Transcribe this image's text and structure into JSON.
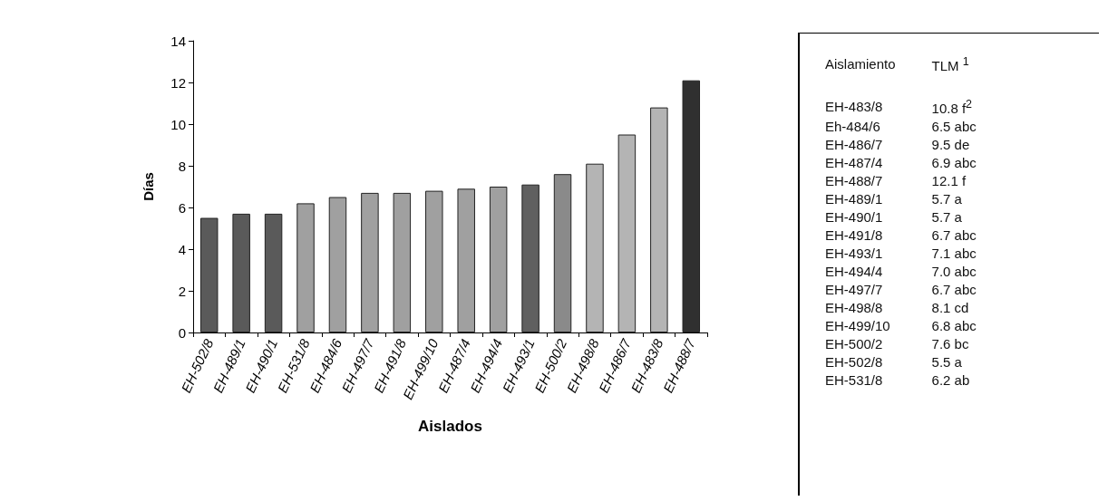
{
  "chart_data": [
    {
      "type": "bar",
      "xlabel": "Aislados",
      "ylabel": "Días",
      "categories": [
        "EH-502/8",
        "EH-489/1",
        "EH-490/1",
        "EH-531/8",
        "EH-484/6",
        "EH-497/7",
        "EH-491/8",
        "EH-499/10",
        "EH-487/4",
        "EH-494/4",
        "EH-493/1",
        "EH-500/2",
        "EH-498/8",
        "EH-486/7",
        "EH-483/8",
        "EH-488/7"
      ],
      "values": [
        5.5,
        5.7,
        5.7,
        6.2,
        6.5,
        6.7,
        6.7,
        6.8,
        6.9,
        7.0,
        7.1,
        7.6,
        8.1,
        9.5,
        10.8,
        12.1
      ],
      "colors": [
        "#5a5a5a",
        "#5a5a5a",
        "#5a5a5a",
        "#a0a0a0",
        "#a0a0a0",
        "#a0a0a0",
        "#a0a0a0",
        "#a0a0a0",
        "#a0a0a0",
        "#a0a0a0",
        "#606060",
        "#8a8a8a",
        "#b4b4b4",
        "#b4b4b4",
        "#b4b4b4",
        "#303030"
      ],
      "ylim": [
        0,
        14
      ],
      "yticks": [
        0,
        2,
        4,
        6,
        8,
        10,
        12,
        14
      ],
      "grid": false
    },
    {
      "type": "other",
      "annotations": [
        "Aislamiento",
        "TLM $^{1}$",
        "EH-483/8",
        "10.8 f$^{2}$",
        "Eh-484/6",
        "6.5 abc",
        "EH-486/7",
        "9.5 de",
        "EH-487/4",
        "6.9 abc",
        "EH-488/7",
        "12.1 f",
        "EH-489/1",
        "5.7 a",
        "EH-490/1",
        "5.7 a",
        "EH-491/8",
        "6.7 abc",
        "EH-493/1",
        "7.1 abc",
        "EH-494/4",
        "7.0 abc",
        "EH-497/7",
        "6.7 abc",
        "EH-498/8",
        "8.1 cd",
        "EH-499/10",
        "6.8 abc",
        "EH-500/2",
        "7.6 bc",
        "EH-502/8",
        "5.5 a",
        "EH-531/8",
        "6.2 ab"
      ]
    }
  ]
}
